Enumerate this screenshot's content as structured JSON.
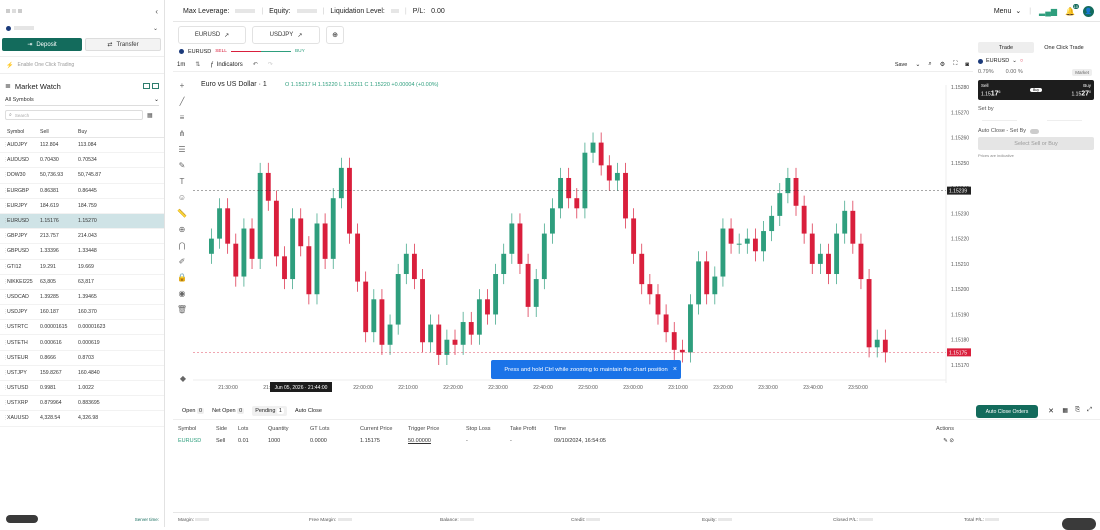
{
  "left": {
    "deposit_label": "Deposit",
    "transfer_label": "Transfer",
    "oneclick_label": "Enable One Click Trading",
    "market_watch_title": "Market Watch",
    "symbols_filter": "All Symbols",
    "search_placeholder": "Search",
    "columns": [
      "Symbol",
      "Sell",
      "Buy"
    ],
    "rows": [
      {
        "symbol": "AUDJPY",
        "sell": "112.804",
        "buy": "113.084"
      },
      {
        "symbol": "AUDUSD",
        "sell": "0.70430",
        "buy": "0.70534"
      },
      {
        "symbol": "DOW30",
        "sell": "50,736.93",
        "buy": "50,745.87"
      },
      {
        "symbol": "EURGBP",
        "sell": "0.86381",
        "buy": "0.86445"
      },
      {
        "symbol": "EURJPY",
        "sell": "184.619",
        "buy": "184.759"
      },
      {
        "symbol": "EURUSD",
        "sell": "1.15176",
        "buy": "1.15270"
      },
      {
        "symbol": "GBPJPY",
        "sell": "213.757",
        "buy": "214.043"
      },
      {
        "symbol": "GBPUSD",
        "sell": "1.33396",
        "buy": "1.33448"
      },
      {
        "symbol": "GTI12",
        "sell": "19.291",
        "buy": "19.669"
      },
      {
        "symbol": "NIKKEI225",
        "sell": "63,805",
        "buy": "63,817"
      },
      {
        "symbol": "USDCAD",
        "sell": "1.39285",
        "buy": "1.39465"
      },
      {
        "symbol": "USDJPY",
        "sell": "160.187",
        "buy": "160.370"
      },
      {
        "symbol": "USTRTC",
        "sell": "0.00001615",
        "buy": "0.00001623"
      },
      {
        "symbol": "USTETH",
        "sell": "0.000616",
        "buy": "0.000619"
      },
      {
        "symbol": "USTEUR",
        "sell": "0.8666",
        "buy": "0.8703"
      },
      {
        "symbol": "USTJPY",
        "sell": "159.8267",
        "buy": "160.4840"
      },
      {
        "symbol": "USTUSD",
        "sell": "0.9981",
        "buy": "1.0022"
      },
      {
        "symbol": "USTXRP",
        "sell": "0.879964",
        "buy": "0.883695"
      },
      {
        "symbol": "XAUUSD",
        "sell": "4,328.54",
        "buy": "4,326.98"
      }
    ],
    "selected_symbol": "EURUSD",
    "server_time_label": "Server time:"
  },
  "topbar": {
    "max_leverage_label": "Max Leverage:",
    "equity_label": "Equity:",
    "liquidation_label": "Liquidation Level:",
    "pl_label": "P/L:",
    "pl_value": "0.00",
    "menu_label": "Menu",
    "notification_count": "10"
  },
  "tabs": [
    "EURUSD",
    "USDJPY"
  ],
  "toolbar": {
    "symbol": "EURUSD",
    "sell_label": "SELL",
    "buy_label": "BUY",
    "timeframe": "1m",
    "indicators_label": "Indicators",
    "save_label": "Save"
  },
  "chart_data": {
    "type": "candlestick",
    "title": "Euro vs US Dollar · 1",
    "ohlc_text": "O 1.15217 H 1.15220 L 1.15211 C 1.15220 +0.00004 (+0.00%)",
    "y_ticks": [
      "1.15280",
      "1.15270",
      "1.15260",
      "1.15250",
      "1.15240",
      "1.15230",
      "1.15220",
      "1.15210",
      "1.15200",
      "1.15190",
      "1.15180",
      "1.15170"
    ],
    "x_ticks": [
      "21:30:00",
      "21:40:00",
      "21:50:00",
      "22:00:00",
      "22:10:00",
      "22:20:00",
      "22:30:00",
      "22:40:00",
      "22:50:00",
      "23:00:00",
      "23:10:00",
      "23:20:00",
      "23:30:00",
      "23:40:00",
      "23:50:00"
    ],
    "ylim": [
      1.1517,
      1.1528
    ],
    "crosshair_date": "Jun 05, 2026 · 21:44:00",
    "current_price_label": "1.15239",
    "last_price_label": "1.15175",
    "grid": false,
    "closes": [
      1.1522,
      1.15232,
      1.15218,
      1.15205,
      1.15224,
      1.15212,
      1.15246,
      1.15235,
      1.15213,
      1.15204,
      1.15228,
      1.15217,
      1.15198,
      1.15226,
      1.15212,
      1.15236,
      1.15248,
      1.15222,
      1.15203,
      1.15183,
      1.15196,
      1.15178,
      1.15186,
      1.15206,
      1.15214,
      1.15204,
      1.15179,
      1.15186,
      1.15174,
      1.1518,
      1.15178,
      1.15187,
      1.15182,
      1.15196,
      1.1519,
      1.15206,
      1.15214,
      1.15226,
      1.1521,
      1.15193,
      1.15204,
      1.15222,
      1.15232,
      1.15244,
      1.15236,
      1.15232,
      1.15254,
      1.15258,
      1.15249,
      1.15243,
      1.15246,
      1.15228,
      1.15214,
      1.15202,
      1.15198,
      1.1519,
      1.15183,
      1.15176,
      1.15175,
      1.15194,
      1.15211,
      1.15198,
      1.15205,
      1.15224,
      1.15218,
      1.15218,
      1.1522,
      1.15215,
      1.15223,
      1.15229,
      1.15238,
      1.15244,
      1.15233,
      1.15222,
      1.1521,
      1.15214,
      1.15206,
      1.15222,
      1.15231,
      1.15218,
      1.15204,
      1.15177,
      1.1518,
      1.15175
    ],
    "tooltip_text": "Press and hold Ctrl while zooming to maintain the chart position"
  },
  "trade_panel": {
    "tab_trade": "Trade",
    "tab_one_click": "One Click Trade",
    "symbol": "EURUSD",
    "change_pct": "0.79%",
    "change_value": "0.00 %",
    "order_type": "Market",
    "sell_label": "Sell",
    "sell_price_small": "1.15",
    "sell_price_big": "17",
    "sell_price_sup": "6",
    "buy_label": "Buy",
    "buy_price_small": "1.15",
    "buy_price_big": "27",
    "buy_price_sup": "0",
    "set_by_label": "Set by",
    "auto_close_label": "Auto Close - Set By",
    "select_sell_buy_label": "Select Sell or Buy",
    "prices_note": "Prices are indicative"
  },
  "orders": {
    "tabs": [
      {
        "label": "Open",
        "count": "0"
      },
      {
        "label": "Net Open",
        "count": "0"
      },
      {
        "label": "Pending",
        "count": "1"
      },
      {
        "label": "Auto Close",
        "count": ""
      }
    ],
    "auto_close_orders_label": "Auto Close Orders",
    "columns": [
      "Symbol",
      "Side",
      "Lots",
      "Quantity",
      "GT Lots",
      "Current Price",
      "Trigger Price",
      "Stop Loss",
      "Take Profit",
      "Time",
      "Actions"
    ],
    "rows": [
      {
        "symbol": "EURUSD",
        "side": "Sell",
        "lots": "0.01",
        "quantity": "1000",
        "gt_lots": "0.0000",
        "current_price": "1.15175",
        "trigger_price": "50.00000",
        "stop_loss": "-",
        "take_profit": "-",
        "time": "09/10/2024, 16:54:05"
      }
    ]
  },
  "footer": {
    "labels": [
      "Margin:",
      "Free Margin:",
      "Balance:",
      "Credit:",
      "Equity:",
      "Closed P/L:",
      "Total P/L:"
    ]
  },
  "colors": {
    "up": "#2e9e7d",
    "down": "#d91f3c",
    "accent": "#136b5c",
    "dark": "#1d1d1d"
  }
}
